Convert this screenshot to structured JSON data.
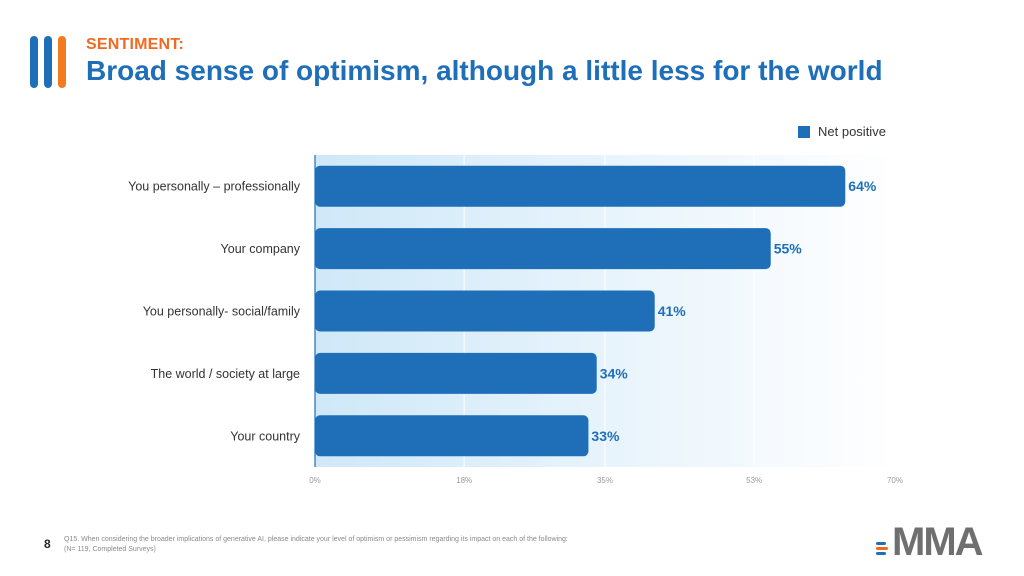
{
  "header": {
    "eyebrow": "SENTIMENT:",
    "title": "Broad sense of optimism, although a little less for the world"
  },
  "chart_data": {
    "type": "bar",
    "orientation": "horizontal",
    "categories": [
      "You personally – professionally",
      "Your company",
      "You personally- social/family",
      "The world / society at large",
      "Your country"
    ],
    "series": [
      {
        "name": "Net positive",
        "values": [
          64,
          55,
          41,
          34,
          33
        ]
      }
    ],
    "data_labels": [
      "64%",
      "55%",
      "41%",
      "34%",
      "33%"
    ],
    "xticks": [
      0,
      18,
      35,
      53,
      70
    ],
    "xtick_labels": [
      "0%",
      "18%",
      "35%",
      "53%",
      "70%"
    ],
    "xlim": [
      0,
      70
    ],
    "legend_position": "top-right",
    "grid": true,
    "colors": {
      "bar": "#1f6fb8",
      "label": "#1f6fb8"
    }
  },
  "footer": {
    "page_number": "8",
    "question": "Q15. When considering the broader implications of generative AI, please indicate your level of optimism or pessimism regarding its impact on each of the following:",
    "sample": "(N= 119, Completed Surveys)"
  },
  "logo": {
    "text": "MMA"
  },
  "colors": {
    "brand_blue": "#1f6fb8",
    "accent_orange": "#f26a21"
  }
}
